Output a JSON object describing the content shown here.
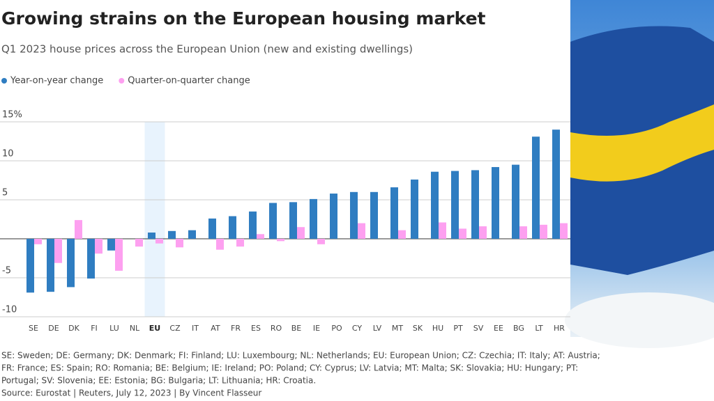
{
  "chart_data": {
    "type": "bar",
    "title": "Growing strains on the European housing market",
    "subtitle": "Q1 2023 house prices across the European Union (new and existing dwellings)",
    "categories": [
      "SE",
      "DE",
      "DK",
      "FI",
      "LU",
      "NL",
      "EU",
      "CZ",
      "IT",
      "AT",
      "FR",
      "ES",
      "RO",
      "BE",
      "IE",
      "PO",
      "CY",
      "LV",
      "MT",
      "SK",
      "HU",
      "PT",
      "SV",
      "EE",
      "BG",
      "LT",
      "HR"
    ],
    "highlight": "EU",
    "series": [
      {
        "name": "Year-on-year change",
        "color": "#2f7dc1",
        "values": [
          -6.9,
          -6.8,
          -6.2,
          -5.1,
          -1.5,
          0,
          0.8,
          1.0,
          1.1,
          2.6,
          2.9,
          3.5,
          4.6,
          4.7,
          5.1,
          5.8,
          6.0,
          6.0,
          6.6,
          7.6,
          8.6,
          8.7,
          8.8,
          9.2,
          9.5,
          13.1,
          14.0
        ]
      },
      {
        "name": "Quarter-on-quarter change",
        "color": "#fda0f0",
        "values": [
          -0.7,
          -3.1,
          2.4,
          -1.9,
          -4.1,
          -1.0,
          -0.6,
          -1.1,
          0,
          -1.4,
          -1.0,
          0.6,
          -0.3,
          1.5,
          -0.7,
          0,
          2.0,
          0,
          1.1,
          0,
          2.1,
          1.3,
          1.6,
          0,
          1.6,
          1.8,
          2.0
        ]
      }
    ],
    "ylim": [
      -10,
      15
    ],
    "yticks": [
      {
        "value": 15,
        "label": "15%"
      },
      10,
      5,
      -5,
      -10
    ],
    "grid": true,
    "legend": "top-left",
    "notes": [
      "SE: Sweden; DE: Germany; DK: Denmark; FI: Finland; LU: Luxembourg; NL: Netherlands; EU: European Union; CZ: Czechia; IT: Italy; AT: Austria;",
      "FR: France; ES: Spain; RO: Romania; BE: Belgium; IE: Ireland; PO: Poland; CY: Cyprus; LV: Latvia; MT: Malta; SK: Slovakia; HU: Hungary; PT:",
      "Portugal; SV: Slovenia; EE: Estonia; BG: Bulgaria; LT: Lithuania; HR: Croatia."
    ],
    "source": "Source: Eurostat | Reuters, July 12, 2023 | By Vincent Flasseur"
  }
}
